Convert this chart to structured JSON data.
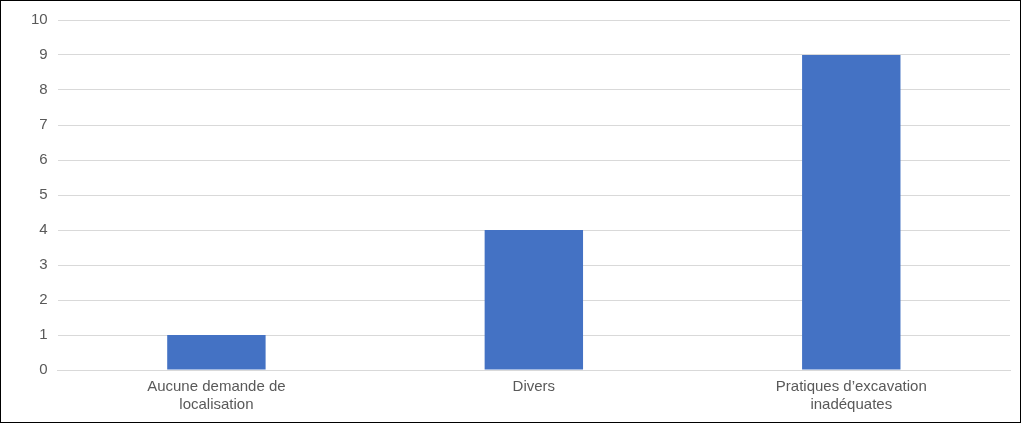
{
  "chart_data": {
    "type": "bar",
    "categories": [
      "Aucune demande de localisation",
      "Divers",
      "Pratiques d’excavation inadéquates"
    ],
    "values": [
      1,
      4,
      9
    ],
    "color": "#4472c4",
    "ylim": [
      0,
      10
    ],
    "yticks": [
      0,
      1,
      2,
      3,
      4,
      5,
      6,
      7,
      8,
      9,
      10
    ],
    "grid": "y",
    "legend": false
  }
}
